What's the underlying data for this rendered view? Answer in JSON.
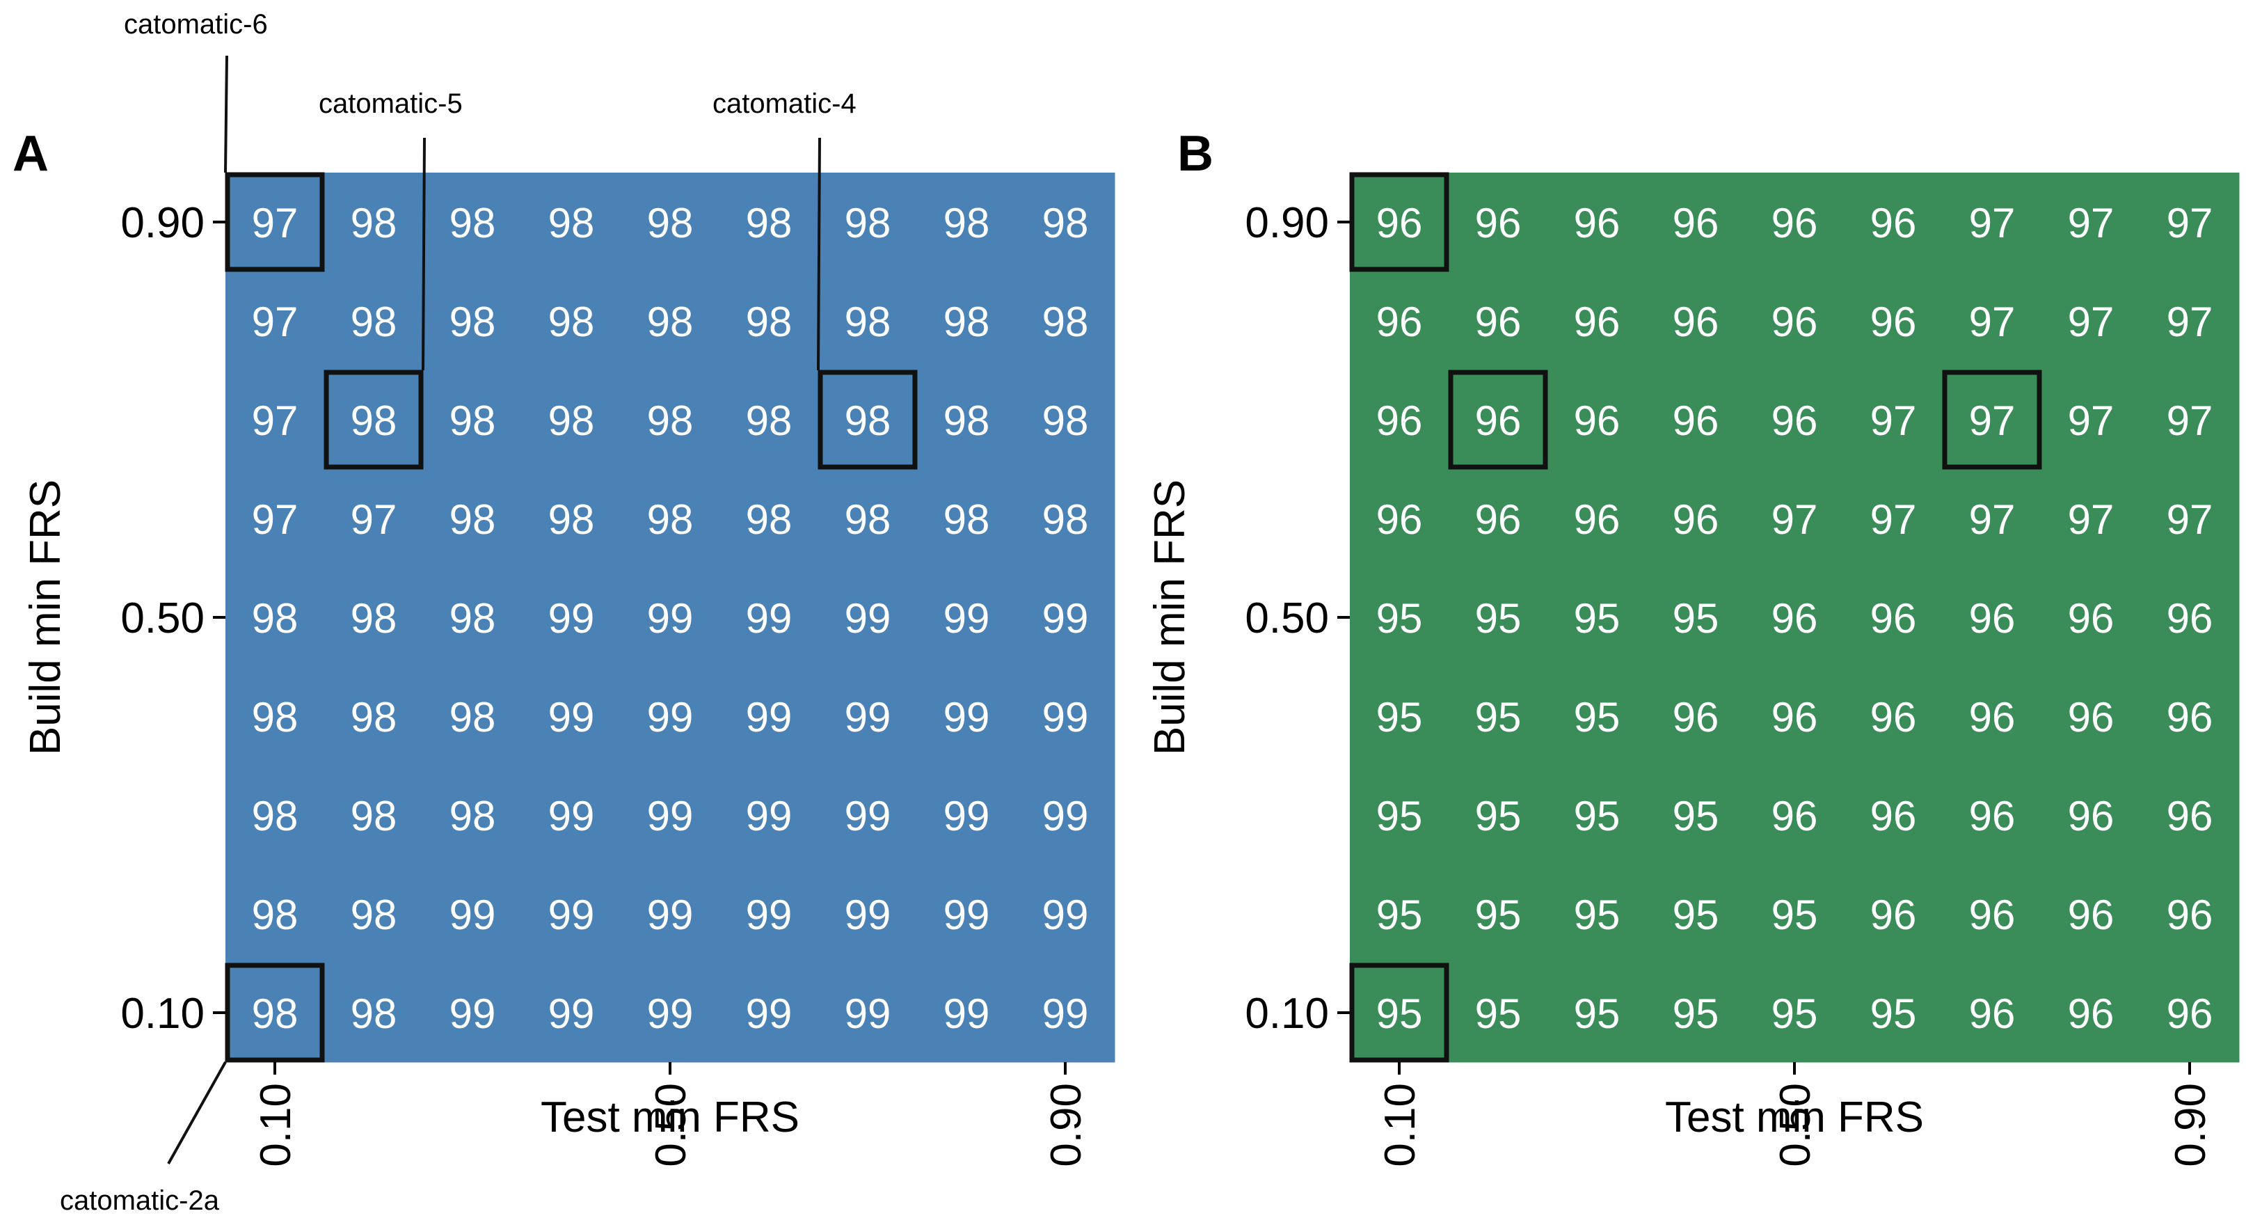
{
  "chart_data": [
    {
      "type": "heatmap",
      "panel_label": "A",
      "color": "#4a82b5",
      "xlabel": "Test min FRS",
      "ylabel": "Build min FRS",
      "x_values": [
        0.1,
        0.2,
        0.3,
        0.4,
        0.5,
        0.6,
        0.7,
        0.8,
        0.9
      ],
      "y_values": [
        0.9,
        0.8,
        0.7,
        0.6,
        0.5,
        0.4,
        0.3,
        0.2,
        0.1
      ],
      "x_ticks": [
        "0.10",
        "0.50",
        "0.90"
      ],
      "y_ticks": [
        "0.90",
        "0.50",
        "0.10"
      ],
      "values": [
        [
          97,
          98,
          98,
          98,
          98,
          98,
          98,
          98,
          98
        ],
        [
          97,
          98,
          98,
          98,
          98,
          98,
          98,
          98,
          98
        ],
        [
          97,
          98,
          98,
          98,
          98,
          98,
          98,
          98,
          98
        ],
        [
          97,
          97,
          98,
          98,
          98,
          98,
          98,
          98,
          98
        ],
        [
          98,
          98,
          98,
          99,
          99,
          99,
          99,
          99,
          99
        ],
        [
          98,
          98,
          98,
          99,
          99,
          99,
          99,
          99,
          99
        ],
        [
          98,
          98,
          98,
          99,
          99,
          99,
          99,
          99,
          99
        ],
        [
          98,
          98,
          99,
          99,
          99,
          99,
          99,
          99,
          99
        ],
        [
          98,
          98,
          99,
          99,
          99,
          99,
          99,
          99,
          99
        ]
      ],
      "highlights": [
        {
          "row": 0,
          "col": 0,
          "label": "catomatic-6"
        },
        {
          "row": 2,
          "col": 1,
          "label": "catomatic-5"
        },
        {
          "row": 2,
          "col": 6,
          "label": "catomatic-4"
        },
        {
          "row": 8,
          "col": 0,
          "label": "catomatic-2a"
        }
      ]
    },
    {
      "type": "heatmap",
      "panel_label": "B",
      "color": "#3a8d59",
      "xlabel": "Test min FRS",
      "ylabel": "Build min FRS",
      "x_values": [
        0.1,
        0.2,
        0.3,
        0.4,
        0.5,
        0.6,
        0.7,
        0.8,
        0.9
      ],
      "y_values": [
        0.9,
        0.8,
        0.7,
        0.6,
        0.5,
        0.4,
        0.3,
        0.2,
        0.1
      ],
      "x_ticks": [
        "0.10",
        "0.50",
        "0.90"
      ],
      "y_ticks": [
        "0.90",
        "0.50",
        "0.10"
      ],
      "values": [
        [
          96,
          96,
          96,
          96,
          96,
          96,
          97,
          97,
          97
        ],
        [
          96,
          96,
          96,
          96,
          96,
          96,
          97,
          97,
          97
        ],
        [
          96,
          96,
          96,
          96,
          96,
          97,
          97,
          97,
          97
        ],
        [
          96,
          96,
          96,
          96,
          97,
          97,
          97,
          97,
          97
        ],
        [
          95,
          95,
          95,
          95,
          96,
          96,
          96,
          96,
          96
        ],
        [
          95,
          95,
          95,
          96,
          96,
          96,
          96,
          96,
          96
        ],
        [
          95,
          95,
          95,
          95,
          96,
          96,
          96,
          96,
          96
        ],
        [
          95,
          95,
          95,
          95,
          95,
          96,
          96,
          96,
          96
        ],
        [
          95,
          95,
          95,
          95,
          95,
          95,
          96,
          96,
          96
        ]
      ],
      "highlights": [
        {
          "row": 0,
          "col": 0
        },
        {
          "row": 2,
          "col": 1
        },
        {
          "row": 2,
          "col": 6
        },
        {
          "row": 8,
          "col": 0
        }
      ]
    }
  ]
}
